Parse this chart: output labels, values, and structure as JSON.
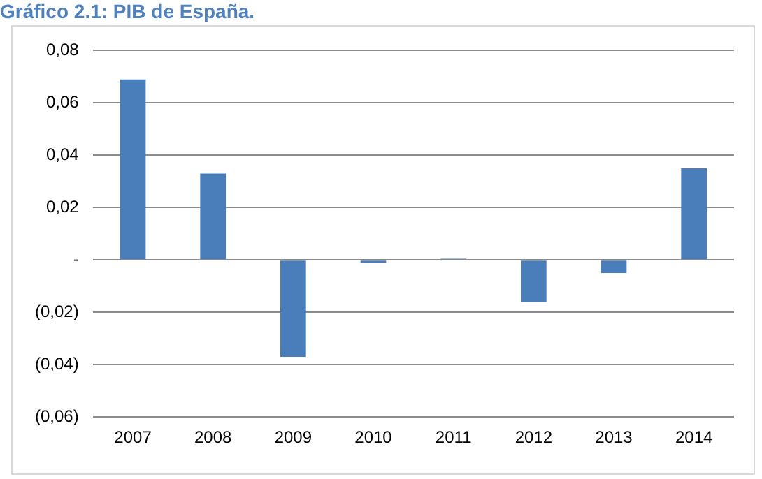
{
  "chart_data": {
    "type": "bar",
    "title": "Gráfico 2.1: PIB de España.",
    "categories": [
      "2007",
      "2008",
      "2009",
      "2010",
      "2011",
      "2012",
      "2013",
      "2014"
    ],
    "values": [
      0.069,
      0.033,
      -0.037,
      -0.001,
      0.0005,
      -0.016,
      -0.005,
      0.035
    ],
    "color": "#4a7ebb",
    "ylim": [
      -0.06,
      0.08
    ],
    "yticks": [
      {
        "value": -0.06,
        "label": "(0,06)"
      },
      {
        "value": -0.04,
        "label": "(0,04)"
      },
      {
        "value": -0.02,
        "label": "(0,02)"
      },
      {
        "value": 0,
        "label": "-"
      },
      {
        "value": 0.02,
        "label": "0,02"
      },
      {
        "value": 0.04,
        "label": "0,04"
      },
      {
        "value": 0.06,
        "label": "0,06"
      },
      {
        "value": 0.08,
        "label": "0,08"
      }
    ],
    "grid": "y",
    "legend": false
  }
}
